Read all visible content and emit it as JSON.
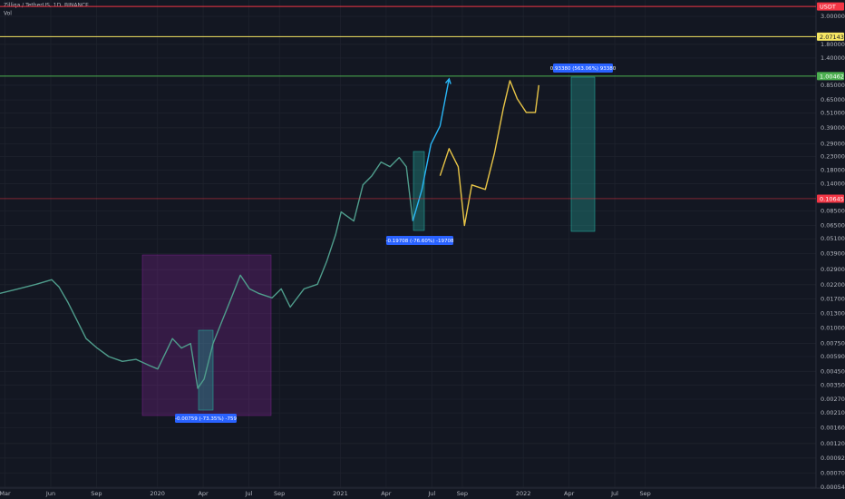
{
  "chart_data": {
    "type": "line",
    "title": "Zilliqa / TetherUS, 1D, BINANCE",
    "subtitle": "Vol",
    "log_scale": true,
    "grid": true,
    "xlim": [
      1.67,
      55.2
    ],
    "xticks": [
      {
        "value": 2,
        "label": "Mar"
      },
      {
        "value": 5,
        "label": "Jun"
      },
      {
        "value": 8,
        "label": "Sep"
      },
      {
        "value": 12,
        "label": "2020"
      },
      {
        "value": 15,
        "label": "Apr"
      },
      {
        "value": 18,
        "label": "Jul"
      },
      {
        "value": 20,
        "label": "Sep"
      },
      {
        "value": 24,
        "label": "2021"
      },
      {
        "value": 27,
        "label": "Apr"
      },
      {
        "value": 30,
        "label": "Jul"
      },
      {
        "value": 32,
        "label": "Sep"
      },
      {
        "value": 36,
        "label": "2022"
      },
      {
        "value": 39,
        "label": "Apr"
      },
      {
        "value": 42,
        "label": "Jul"
      },
      {
        "value": 44,
        "label": "Sep"
      }
    ],
    "ylim": [
      0.00053,
      4.05
    ],
    "yticks": [
      {
        "value": 3.0,
        "label": "3.00000"
      },
      {
        "value": 1.8,
        "label": "1.80000"
      },
      {
        "value": 1.4,
        "label": "1.40000"
      },
      {
        "value": 0.85,
        "label": "0.85000"
      },
      {
        "value": 0.65,
        "label": "0.65000"
      },
      {
        "value": 0.51,
        "label": "0.51000"
      },
      {
        "value": 0.39,
        "label": "0.39000"
      },
      {
        "value": 0.29,
        "label": "0.29000"
      },
      {
        "value": 0.23,
        "label": "0.23000"
      },
      {
        "value": 0.18,
        "label": "0.18000"
      },
      {
        "value": 0.14,
        "label": "0.14000"
      },
      {
        "value": 0.085,
        "label": "0.08500"
      },
      {
        "value": 0.065,
        "label": "0.06500"
      },
      {
        "value": 0.051,
        "label": "0.05100"
      },
      {
        "value": 0.039,
        "label": "0.03900"
      },
      {
        "value": 0.029,
        "label": "0.02900"
      },
      {
        "value": 0.022,
        "label": "0.02200"
      },
      {
        "value": 0.017,
        "label": "0.01700"
      },
      {
        "value": 0.013,
        "label": "0.01300"
      },
      {
        "value": 0.01,
        "label": "0.01000"
      },
      {
        "value": 0.0075,
        "label": "0.00750"
      },
      {
        "value": 0.0059,
        "label": "0.00590"
      },
      {
        "value": 0.0045,
        "label": "0.00450"
      },
      {
        "value": 0.0035,
        "label": "0.00350"
      },
      {
        "value": 0.0027,
        "label": "0.00270"
      },
      {
        "value": 0.0021,
        "label": "0.00210"
      },
      {
        "value": 0.0016,
        "label": "0.00160"
      },
      {
        "value": 0.0012,
        "label": "0.00120"
      },
      {
        "value": 0.00092,
        "label": "0.00092"
      },
      {
        "value": 0.0007,
        "label": "0.00070"
      },
      {
        "value": 0.00054,
        "label": "0.00054"
      }
    ],
    "series": [
      {
        "color": "#4f9d8c",
        "x": [
          1.67,
          2.86,
          4.05,
          5.06,
          5.54,
          6.13,
          6.73,
          7.32,
          8.04,
          8.81,
          9.7,
          10.6,
          11.49,
          12.02,
          12.98,
          13.57,
          14.17,
          14.64,
          15.06,
          15.65,
          16.25,
          16.85,
          17.44,
          18.04,
          18.63,
          19.52,
          20.12,
          20.71,
          21.61,
          22.5,
          23.1,
          23.69,
          24.05,
          24.88,
          25.48,
          26.07,
          26.67,
          27.26,
          27.86,
          28.33,
          28.75
        ],
        "values": [
          0.0188,
          0.0204,
          0.0222,
          0.0241,
          0.0211,
          0.0159,
          0.0114,
          0.0082,
          0.0069,
          0.0059,
          0.0054,
          0.0056,
          0.005,
          0.0047,
          0.0082,
          0.0069,
          0.0075,
          0.0033,
          0.0039,
          0.0075,
          0.0114,
          0.0173,
          0.0262,
          0.0204,
          0.0188,
          0.0173,
          0.0204,
          0.0146,
          0.0204,
          0.0222,
          0.0336,
          0.0552,
          0.0835,
          0.0707,
          0.137,
          0.162,
          0.208,
          0.191,
          0.226,
          0.191,
          0.0707
        ]
      },
      {
        "color": "#29b6f6",
        "x": [
          28.75,
          29.35,
          29.94,
          30.54,
          31.13
        ],
        "values": [
          0.0707,
          0.126,
          0.289,
          0.403,
          0.955
        ]
      },
      {
        "color": "#e8c547",
        "x": [
          30.54,
          31.13,
          31.73,
          32.14,
          32.62,
          33.51,
          34.11,
          34.7,
          35.12,
          35.6,
          36.19,
          36.79,
          37.02
        ],
        "values": [
          0.162,
          0.266,
          0.191,
          0.0651,
          0.137,
          0.126,
          0.245,
          0.562,
          0.924,
          0.663,
          0.517,
          0.517,
          0.85
        ]
      }
    ],
    "price_lines": [
      {
        "label": "USDT",
        "value": 3.6,
        "color": "#f23645"
      },
      {
        "label": "2.07143",
        "value": 2.07143,
        "color": "#f5e663"
      },
      {
        "label": "1.00462",
        "value": 1.00462,
        "color": "#4caf50"
      },
      {
        "label": "0.10645",
        "value": 0.10645,
        "color": "#f23645"
      }
    ],
    "annotations": [
      "-0.00759 (-73.35%) -759",
      "-0.19708 (-76.60%) -19708",
      "0.93380 (563.06%) 93380"
    ]
  }
}
